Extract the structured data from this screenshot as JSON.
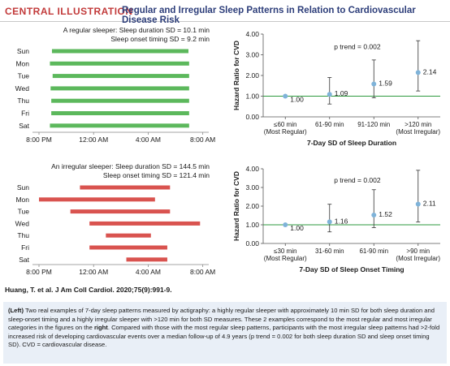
{
  "header": {
    "tag": "CENTRAL ILLUSTRATION",
    "title": "Regular and Irregular Sleep Patterns in Relation to Cardiovascular Disease Risk"
  },
  "regular": {
    "title1": "A regular sleeper: Sleep duration SD = 10.1 min",
    "title2": "Sleep onset timing SD = 9.2 min",
    "color": "#5cb85c",
    "days": [
      "Sun",
      "Mon",
      "Tue",
      "Wed",
      "Thu",
      "Fri",
      "Sat"
    ],
    "bars": [
      [
        0.95,
        10.95
      ],
      [
        0.8,
        11.0
      ],
      [
        1.0,
        11.0
      ],
      [
        0.85,
        11.0
      ],
      [
        0.9,
        11.0
      ],
      [
        0.9,
        11.0
      ],
      [
        0.8,
        11.0
      ]
    ],
    "xticks": [
      "8:00 PM",
      "12:00 AM",
      "4:00 AM",
      "8:00 AM"
    ]
  },
  "irregular": {
    "title1": "An irregular sleeper: Sleep duration SD = 144.5 min",
    "title2": "Sleep onset timing SD = 121.4 min",
    "color": "#d9534f",
    "days": [
      "Sun",
      "Mon",
      "Tue",
      "Wed",
      "Thu",
      "Fri",
      "Sat"
    ],
    "bars": [
      [
        3.0,
        9.6
      ],
      [
        0.0,
        8.5
      ],
      [
        2.3,
        9.6
      ],
      [
        3.7,
        11.8
      ],
      [
        4.9,
        8.2
      ],
      [
        3.7,
        9.4
      ],
      [
        6.4,
        9.4
      ]
    ],
    "xticks": [
      "8:00 PM",
      "12:00 AM",
      "4:00 AM",
      "8:00 AM"
    ]
  },
  "chart_data": [
    {
      "type": "scatter",
      "title": "",
      "xlabel": "7-Day SD of Sleep Duration",
      "ylabel": "Hazard Ratio for CVD",
      "ylim": [
        0,
        4
      ],
      "yticks": [
        "0.00",
        "1.00",
        "2.00",
        "3.00",
        "4.00"
      ],
      "categories": [
        "≤60 min (Most Regular)",
        "61-90 min",
        "91-120 min",
        ">120 min (Most Irregular)"
      ],
      "cat_line1": [
        "≤60 min",
        "61-90 min",
        "91-120 min",
        ">120 min"
      ],
      "cat_line2": [
        "(Most Regular)",
        "",
        "",
        "(Most Irregular)"
      ],
      "values": [
        1.0,
        1.09,
        1.59,
        2.14
      ],
      "labels": [
        "1.00",
        "1.09",
        "1.59",
        "2.14"
      ],
      "ci_low": [
        1.0,
        0.62,
        0.92,
        1.25
      ],
      "ci_high": [
        1.0,
        1.9,
        2.75,
        3.68
      ],
      "annotation": "p trend = 0.002",
      "reference_line": 1.0
    },
    {
      "type": "scatter",
      "title": "",
      "xlabel": "7-Day SD of Sleep Onset Timing",
      "ylabel": "Hazard Ratio for CVD",
      "ylim": [
        0,
        4
      ],
      "yticks": [
        "0.00",
        "1.00",
        "2.00",
        "3.00",
        "4.00"
      ],
      "categories": [
        "≤30 min (Most Regular)",
        "31-60 min",
        "61-90 min",
        ">90 min (Most Irregular)"
      ],
      "cat_line1": [
        "≤30 min",
        "31-60 min",
        "61-90 min",
        ">90 min"
      ],
      "cat_line2": [
        "(Most Regular)",
        "",
        "",
        "(Most Irregular)"
      ],
      "values": [
        1.0,
        1.16,
        1.52,
        2.11
      ],
      "labels": [
        "1.00",
        "1.16",
        "1.52",
        "2.11"
      ],
      "ci_low": [
        1.0,
        0.62,
        0.85,
        1.15
      ],
      "ci_high": [
        1.0,
        2.1,
        2.88,
        3.92
      ],
      "annotation": "p trend = 0.002",
      "reference_line": 1.0
    }
  ],
  "colors": {
    "point": "#7fb3d9",
    "reference": "#2e9a3e",
    "error": "#333333"
  },
  "citation": "Huang, T. et al. J Am Coll Cardiol. 2020;75(9):991-9.",
  "caption": {
    "lead": "(Left)",
    "part1": " Two real examples of 7-day sleep patterns measured by actigraphy: a highly regular sleeper with approximately 10 min SD for both sleep duration and sleep-onset timing and a highly irregular sleeper with >120 min for both SD measures. These 2 examples correspond to the most regular and most irregular categories in the figures on the ",
    "right": "right",
    "part2": ". Compared with those with the most regular sleep patterns, participants with the most irregular sleep patterns had >2-fold increased risk of developing cardiovascular events over a median follow-up of 4.9 years (p trend = 0.002 for both sleep duration SD and sleep onset timing SD). CVD = cardiovascular disease."
  }
}
